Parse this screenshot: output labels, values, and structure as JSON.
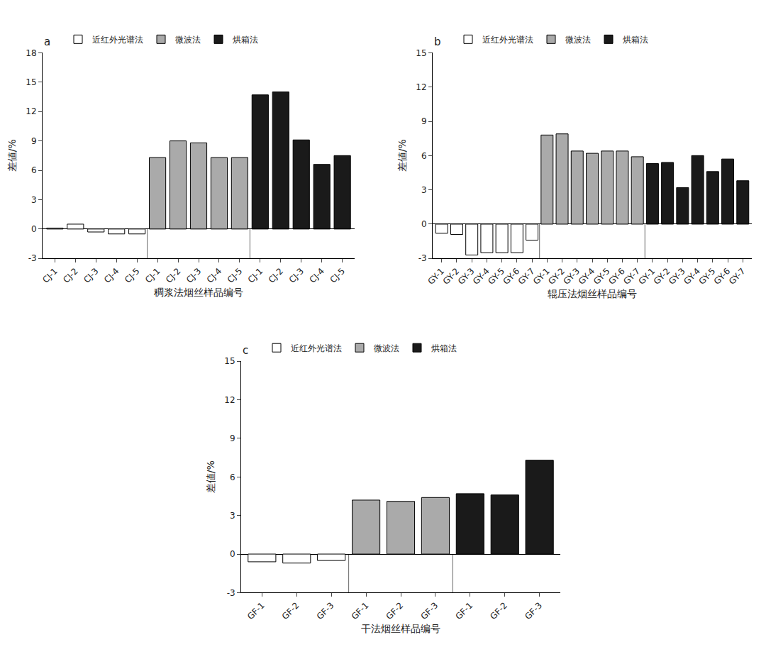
{
  "chart_data": [
    {
      "type": "bar",
      "title": "a",
      "xlabel": "稠浆法烟丝样品编号",
      "ylabel": "差値/%",
      "categories": [
        "CJ-1",
        "CJ-2",
        "CJ-3",
        "CJ-4",
        "CJ-5",
        "CJ-1",
        "CJ-2",
        "CJ-3",
        "CJ-4",
        "CJ-5",
        "CJ-1",
        "CJ-2",
        "CJ-3",
        "CJ-4",
        "CJ-5"
      ],
      "series": [
        {
          "name": "近红外光谱法",
          "color": "#ffffff",
          "values": [
            0.1,
            0.5,
            -0.3,
            -0.5,
            -0.5,
            null,
            null,
            null,
            null,
            null,
            null,
            null,
            null,
            null,
            null
          ]
        },
        {
          "name": "微波法",
          "color": "#aaaaaa",
          "values": [
            null,
            null,
            null,
            null,
            null,
            7.3,
            9.0,
            8.8,
            7.3,
            7.3,
            null,
            null,
            null,
            null,
            null
          ]
        },
        {
          "name": "烘箱法",
          "color": "#1a1a1a",
          "values": [
            null,
            null,
            null,
            null,
            null,
            null,
            null,
            null,
            null,
            null,
            13.7,
            14.0,
            9.1,
            6.6,
            7.5
          ]
        }
      ],
      "ylim": [
        -3,
        18
      ],
      "yticks": [
        -3,
        0,
        3,
        6,
        9,
        12,
        15,
        18
      ],
      "grid": false,
      "legend": "upper left"
    },
    {
      "type": "bar",
      "title": "b",
      "xlabel": "辊压法烟丝样品编号",
      "ylabel": "差値/%",
      "categories": [
        "GY-1",
        "GY-2",
        "GY-3",
        "GY-4",
        "GY-5",
        "GY-6",
        "GY-7",
        "GY-1",
        "GY-2",
        "GY-3",
        "GY-4",
        "GY-5",
        "GY-6",
        "GY-7",
        "GY-1",
        "GY-2",
        "GY-3",
        "GY-4",
        "GY-5",
        "GY-6",
        "GY-7"
      ],
      "series": [
        {
          "name": "近红外光谱法",
          "color": "#ffffff",
          "values": [
            -0.8,
            -0.9,
            -2.7,
            -2.5,
            -2.5,
            -2.5,
            -1.4,
            null,
            null,
            null,
            null,
            null,
            null,
            null,
            null,
            null,
            null,
            null,
            null,
            null,
            null
          ]
        },
        {
          "name": "微波法",
          "color": "#aaaaaa",
          "values": [
            null,
            null,
            null,
            null,
            null,
            null,
            null,
            7.8,
            7.9,
            6.4,
            6.2,
            6.4,
            6.4,
            5.9,
            null,
            null,
            null,
            null,
            null,
            null,
            null
          ]
        },
        {
          "name": "烘箱法",
          "color": "#1a1a1a",
          "values": [
            null,
            null,
            null,
            null,
            null,
            null,
            null,
            null,
            null,
            null,
            null,
            null,
            null,
            null,
            5.3,
            5.4,
            3.2,
            6.0,
            4.6,
            5.7,
            3.8
          ]
        }
      ],
      "ylim": [
        -3,
        15
      ],
      "yticks": [
        -3,
        0,
        3,
        6,
        9,
        12,
        15
      ],
      "grid": false,
      "legend": "upper left"
    },
    {
      "type": "bar",
      "title": "c",
      "xlabel": "干法烟丝样品编号",
      "ylabel": "差値/%",
      "categories": [
        "GF-1",
        "GF-2",
        "GF-3",
        "GF-1",
        "GF-2",
        "GF-3",
        "GF-1",
        "GF-2",
        "GF-3"
      ],
      "series": [
        {
          "name": "近红外光谱法",
          "color": "#ffffff",
          "values": [
            -0.6,
            -0.7,
            -0.5,
            null,
            null,
            null,
            null,
            null,
            null
          ]
        },
        {
          "name": "微波法",
          "color": "#aaaaaa",
          "values": [
            null,
            null,
            null,
            4.2,
            4.1,
            4.4,
            null,
            null,
            null
          ]
        },
        {
          "name": "烘箱法",
          "color": "#1a1a1a",
          "values": [
            null,
            null,
            null,
            null,
            null,
            null,
            4.7,
            4.6,
            7.3
          ]
        }
      ],
      "ylim": [
        -3,
        15
      ],
      "yticks": [
        -3,
        0,
        3,
        6,
        9,
        12,
        15
      ],
      "grid": false,
      "legend": "upper left"
    }
  ]
}
